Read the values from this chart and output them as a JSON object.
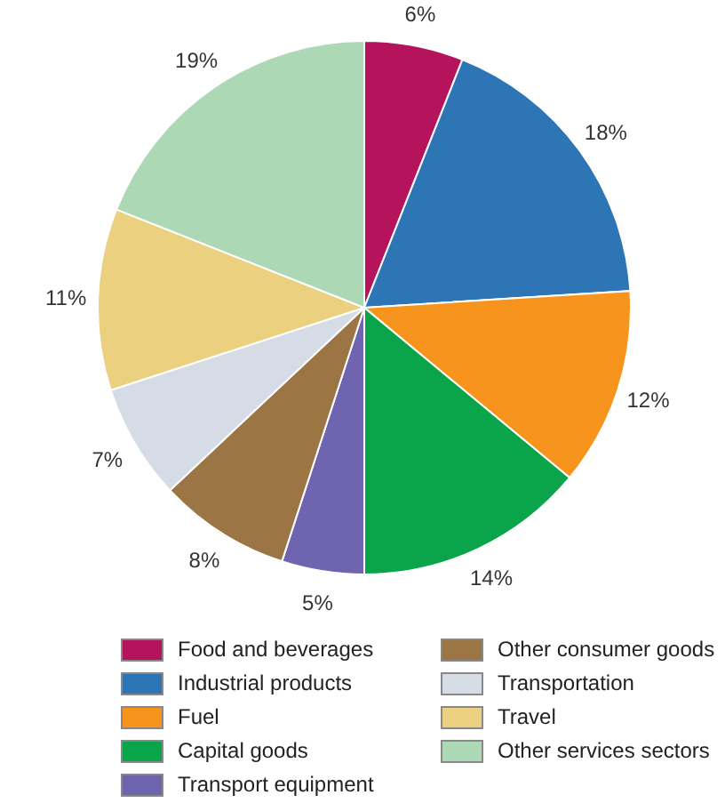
{
  "chart_data": {
    "type": "pie",
    "categories": [
      "Food and beverages",
      "Industrial products",
      "Fuel",
      "Capital goods",
      "Transport equipment",
      "Other consumer goods",
      "Transportation",
      "Travel",
      "Other services sectors"
    ],
    "values": [
      6,
      18,
      12,
      14,
      5,
      8,
      7,
      11,
      19
    ],
    "value_labels": [
      "6%",
      "18%",
      "12%",
      "14%",
      "5%",
      "8%",
      "7%",
      "11%",
      "19%"
    ],
    "colors": [
      "#b5135c",
      "#2e75b6",
      "#f7941d",
      "#0aa54b",
      "#6f64b0",
      "#9c7544",
      "#d5dce6",
      "#ebd07f",
      "#acd8b5"
    ],
    "legend": "bottom"
  }
}
